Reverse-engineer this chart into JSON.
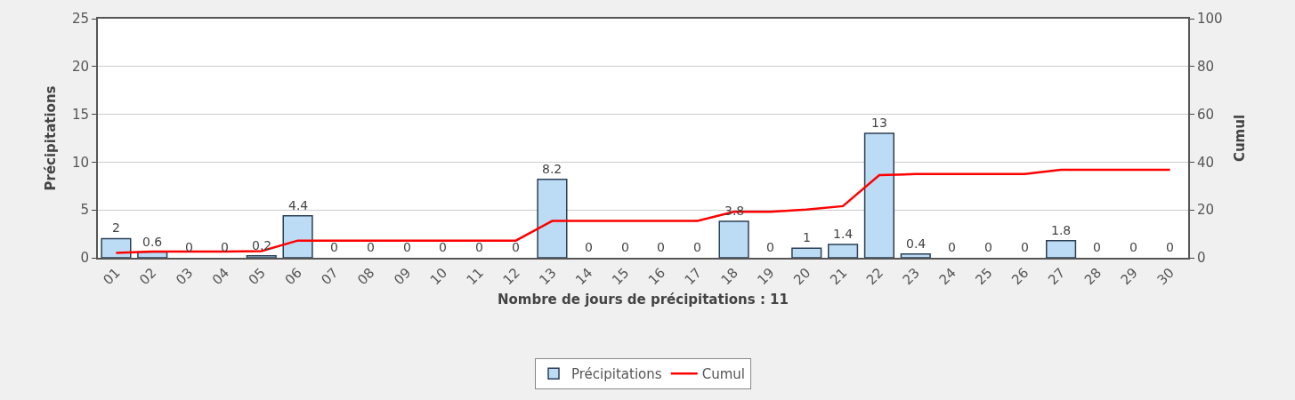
{
  "chart_data": {
    "type": "bar",
    "xlabel": "Nombre de jours de précipitations : 11",
    "ylabel": "Précipitations",
    "y2label": "Cumul",
    "categories": [
      "01",
      "02",
      "03",
      "04",
      "05",
      "06",
      "07",
      "08",
      "09",
      "10",
      "11",
      "12",
      "13",
      "14",
      "15",
      "16",
      "17",
      "18",
      "19",
      "20",
      "21",
      "22",
      "23",
      "24",
      "25",
      "26",
      "27",
      "28",
      "29",
      "30"
    ],
    "series": [
      {
        "name": "Précipitations",
        "color": "#bcdcf5",
        "values": [
          2,
          0.6,
          0,
          0,
          0.2,
          4.4,
          0,
          0,
          0,
          0,
          0,
          0,
          8.2,
          0,
          0,
          0,
          0,
          3.8,
          0,
          1,
          1.4,
          13,
          0.4,
          0,
          0,
          0,
          1.8,
          0,
          0,
          0
        ],
        "value_labels": [
          "2",
          "0.6",
          "0",
          "0",
          "0.2",
          "4.4",
          "0",
          "0",
          "0",
          "0",
          "0",
          "0",
          "8.2",
          "0",
          "0",
          "0",
          "0",
          "3.8",
          "0",
          "1",
          "1.4",
          "13",
          "0.4",
          "0",
          "0",
          "0",
          "1.8",
          "0",
          "0",
          "0"
        ]
      },
      {
        "name": "Cumul",
        "type": "line",
        "axis": "y2",
        "color": "#ff0000",
        "values": [
          2,
          2.6,
          2.6,
          2.6,
          2.8,
          7.2,
          7.2,
          7.2,
          7.2,
          7.2,
          7.2,
          7.2,
          15.4,
          15.4,
          15.4,
          15.4,
          15.4,
          19.2,
          19.2,
          20.2,
          21.6,
          34.6,
          35,
          35,
          35,
          35,
          36.8,
          36.8,
          36.8,
          36.8
        ]
      }
    ],
    "ylim": [
      0,
      25
    ],
    "yticks": [
      0,
      5,
      10,
      15,
      20,
      25
    ],
    "y2lim": [
      0,
      100
    ],
    "y2ticks": [
      0,
      20,
      40,
      60,
      80,
      100
    ],
    "grid": "y",
    "legend": "bottom",
    "marker": "none",
    "line_style": "solid"
  }
}
